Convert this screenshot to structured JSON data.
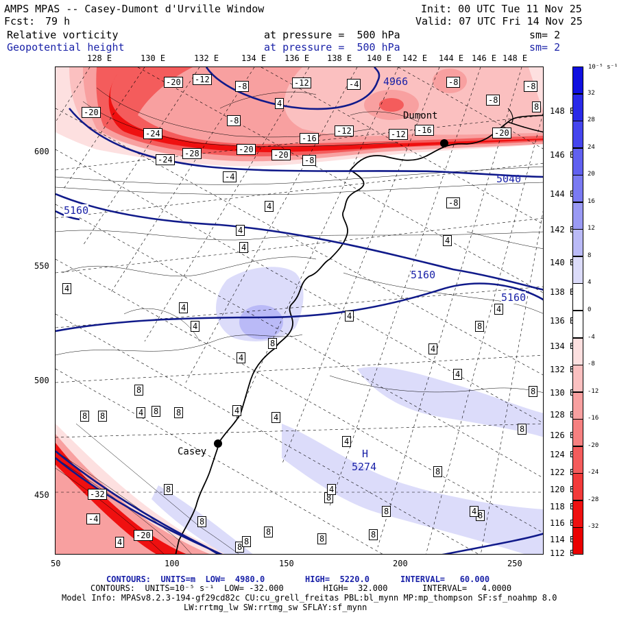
{
  "header": {
    "title": "AMPS MPAS -- Casey-Dumont d'Urville Window",
    "fcst_label": "Fcst:",
    "fcst_value": "79 h",
    "init": "Init: 00 UTC Tue 11 Nov 25",
    "valid": "Valid: 07 UTC Fri 14 Nov 25",
    "field1_name": "Relative vorticity",
    "field1_level": "at pressure =  500 hPa",
    "field1_sm": "sm= 2",
    "field2_name": "Geopotential height",
    "field2_level": "at pressure =  500 hPa",
    "field2_sm": "sm= 2"
  },
  "longitude_labels_top": [
    "128 E",
    "130 E",
    "132 E",
    "134 E",
    "136 E",
    "138 E",
    "140 E",
    "142 E",
    "144 E",
    "146 E",
    "148 E"
  ],
  "longitude_labels_right": [
    "148 E",
    "146 E",
    "144 E",
    "142 E",
    "140 E",
    "138 E",
    "136 E",
    "134 E",
    "132 E",
    "130 E",
    "128 E",
    "126 E",
    "124 E",
    "122 E",
    "120 E",
    "118 E",
    "116 E",
    "114 E",
    "112 E"
  ],
  "x_axis_ticks": [
    "50",
    "100",
    "150",
    "200",
    "250"
  ],
  "y_axis_ticks": [
    "600",
    "550",
    "500",
    "450"
  ],
  "places": [
    {
      "name": "Casey"
    },
    {
      "name": "Dumont"
    }
  ],
  "pressure_centers": [
    {
      "label": "H",
      "value": "5274"
    },
    {
      "label": "",
      "value": "4966"
    }
  ],
  "height_contour_labels": [
    "5160",
    "5160",
    "5160",
    "5040"
  ],
  "vorticity_labels": [
    "-20",
    "-12",
    "-8",
    "-12",
    "-4",
    "-8",
    "-8",
    "-8",
    "4",
    "8",
    "-20",
    "-8",
    "-24",
    "-28",
    "-20",
    "-20",
    "-16",
    "-12",
    "-12",
    "-16",
    "-20",
    "-24",
    "-8",
    "-4",
    "-8",
    "4",
    "4",
    "4",
    "4",
    "4",
    "4",
    "4",
    "8",
    "4",
    "4",
    "8",
    "4",
    "4",
    "4",
    "8",
    "4",
    "8",
    "8",
    "8",
    "8",
    "4",
    "4",
    "4",
    "8",
    "8",
    "8",
    "8",
    "8",
    "8",
    "8",
    "8",
    "8",
    "8",
    "-32",
    "-4",
    "-20",
    "4",
    "8",
    "8",
    "8",
    "4",
    "4"
  ],
  "colorbar": {
    "units_label": "10⁻⁵ s⁻¹",
    "ticks": [
      "32",
      "28",
      "24",
      "20",
      "16",
      "12",
      "8",
      "4",
      "0",
      "-4",
      "-8",
      "-12",
      "-16",
      "-20",
      "-24",
      "-28",
      "-32"
    ],
    "colors": [
      "#1010e0",
      "#2a2ae8",
      "#4545ee",
      "#6060f0",
      "#7a7af2",
      "#9a9af4",
      "#babaf7",
      "#dcdcfa",
      "#ffffff",
      "#ffffff",
      "#fde0e0",
      "#fbc0c0",
      "#f8a0a0",
      "#f68080",
      "#f45c5c",
      "#f23a3a",
      "#ef1010",
      "#ea0000"
    ]
  },
  "footer": {
    "line1_a": "CONTOURS:  UNITS=m  LOW=  4980.0",
    "line1_b": "HIGH=  5220.0",
    "line1_c": "INTERVAL=   60.000",
    "line2": "CONTOURS:  UNITS=10⁻⁵ s⁻¹  LOW= -32.000        HIGH=  32.000       INTERVAL=   4.0000",
    "line3": "Model Info: MPASv8.2.3-194-gf29cd82c CU:cu_grell_freitas PBL:bl_mynn MP:mp_thompson SF:sf_noahmp 8.0",
    "line4": "LW:rrtmg_lw SW:rrtmg_sw SFLAY:sf_mynn"
  }
}
